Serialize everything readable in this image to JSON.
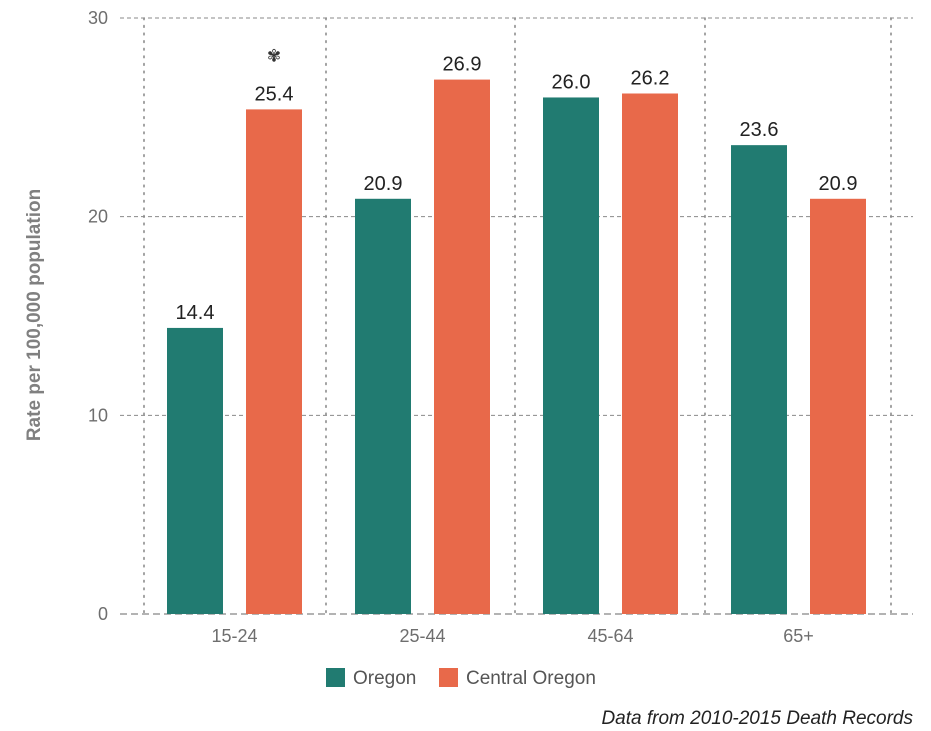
{
  "chart_data": {
    "type": "bar",
    "ylabel": "Rate per 100,000 population",
    "xlabel": "",
    "ylim": [
      0,
      30
    ],
    "yticks": [
      0,
      10,
      20,
      30
    ],
    "categories": [
      "15-24",
      "25-44",
      "45-64",
      "65+"
    ],
    "series": [
      {
        "name": "Oregon",
        "color": "#217b71",
        "values": [
          14.4,
          20.9,
          26.0,
          23.6
        ],
        "labels": [
          "14.4",
          "20.9",
          "26.0",
          "23.6"
        ]
      },
      {
        "name": "Central Oregon",
        "color": "#e8694a",
        "values": [
          25.4,
          26.9,
          26.2,
          20.9
        ],
        "labels": [
          "25.4",
          "26.9",
          "26.2",
          "20.9"
        ]
      }
    ],
    "flag": {
      "symbol": "✾",
      "category": "15-24",
      "series": "Central Oregon"
    },
    "grid": {
      "horizontal": "dashed",
      "vertical": "dotted"
    },
    "legend_position": "bottom-center",
    "source": "Data from 2010-2015 Death Records"
  }
}
